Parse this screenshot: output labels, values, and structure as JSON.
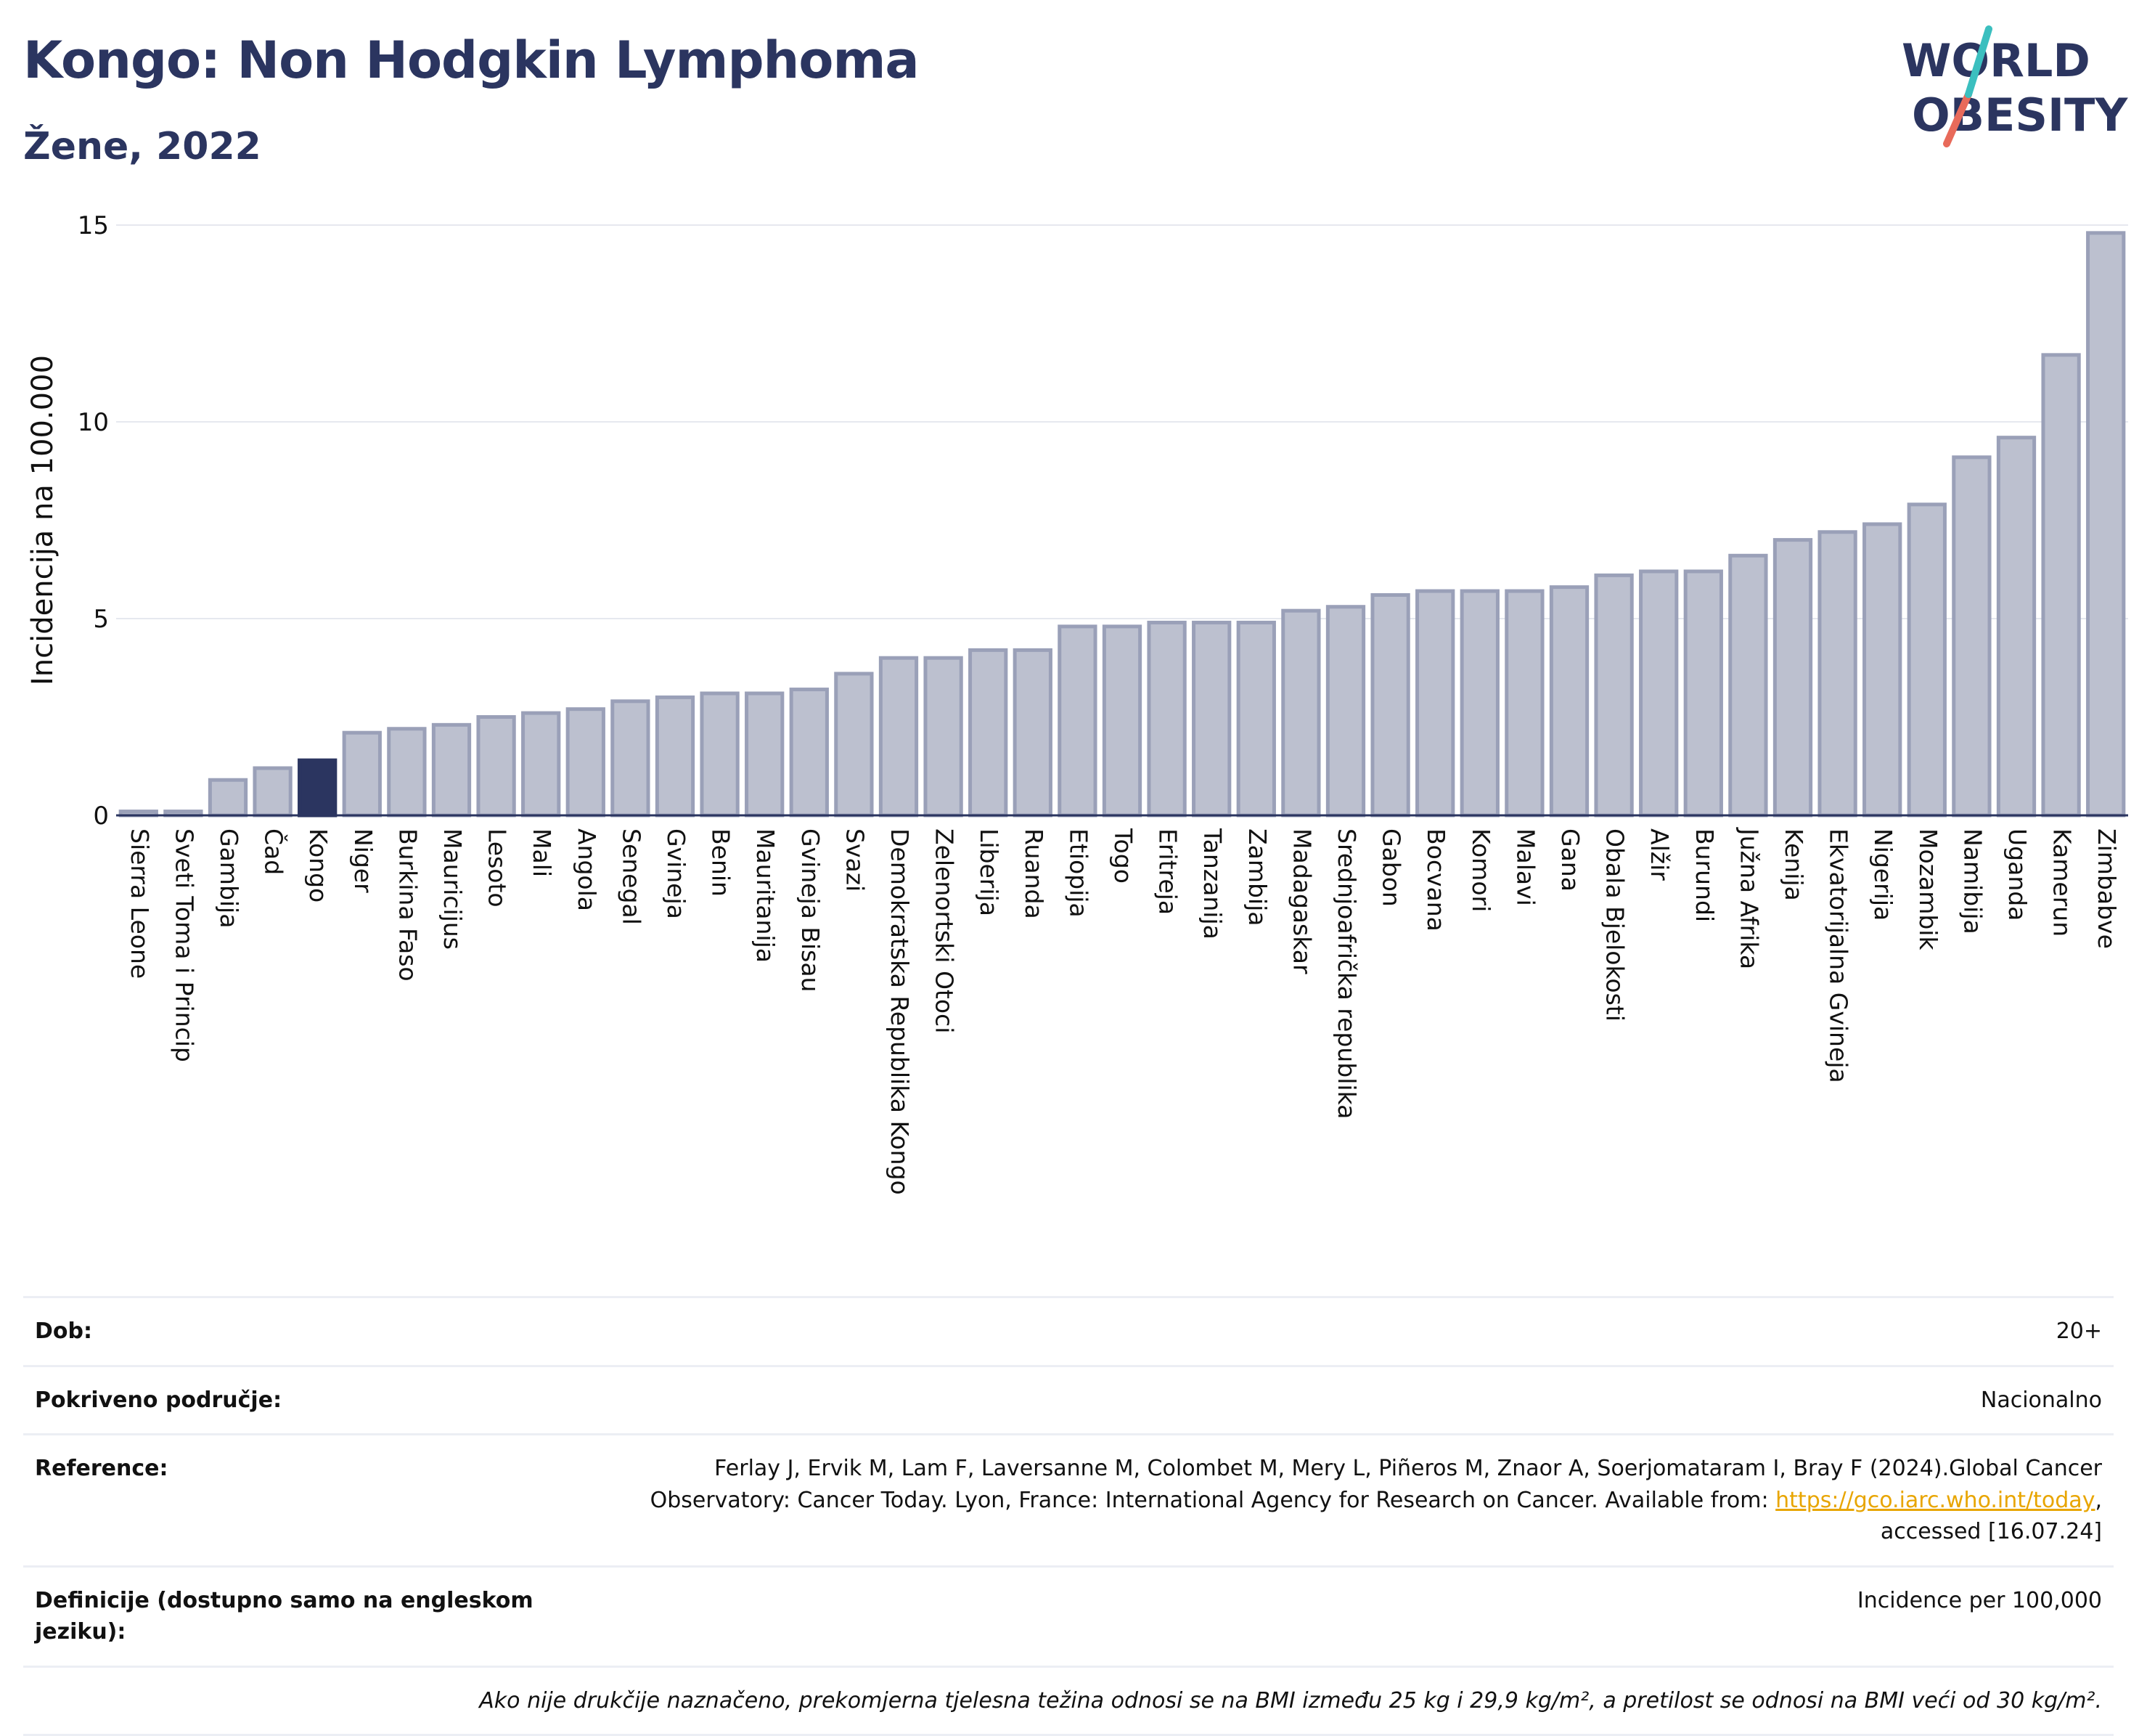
{
  "header": {
    "title": "Kongo: Non Hodgkin Lymphoma",
    "subtitle": "Žene, 2022"
  },
  "logo": {
    "line1": "WORLD",
    "line2": "OBESITY",
    "accent_colors": [
      "#3bbfbf",
      "#e86a5a"
    ]
  },
  "colors": {
    "bar": "#bcc0cf",
    "bar_stroke": "#9aa0b8",
    "highlight": "#2b3560",
    "grid": "#e6e8ef",
    "text": "#2b3560"
  },
  "chart_data": {
    "type": "bar",
    "ylabel": "Incidencija na 100.000",
    "ylim": [
      0,
      15
    ],
    "yticks": [
      0,
      5,
      10,
      15
    ],
    "highlight": "Kongo",
    "categories": [
      "Sierra Leone",
      "Sveti Toma i Princip",
      "Gambija",
      "Čad",
      "Kongo",
      "Niger",
      "Burkina Faso",
      "Mauricijus",
      "Lesoto",
      "Mali",
      "Angola",
      "Senegal",
      "Gvineja",
      "Benin",
      "Mauritanija",
      "Gvineja Bisau",
      "Svazi",
      "Demokratska Republika Kongo",
      "Zelenortski Otoci",
      "Liberija",
      "Ruanda",
      "Etiopija",
      "Togo",
      "Eritreja",
      "Tanzanija",
      "Zambija",
      "Madagaskar",
      "Srednjoafrička republika",
      "Gabon",
      "Bocvana",
      "Komori",
      "Malavi",
      "Gana",
      "Obala Bjelokosti",
      "Alžir",
      "Burundi",
      "Južna Afrika",
      "Kenija",
      "Ekvatorijalna Gvineja",
      "Nigerija",
      "Mozambik",
      "Namibija",
      "Uganda",
      "Kamerun",
      "Zimbabve"
    ],
    "values": [
      0.1,
      0.1,
      0.9,
      1.2,
      1.4,
      2.1,
      2.2,
      2.3,
      2.5,
      2.6,
      2.7,
      2.9,
      3.0,
      3.1,
      3.1,
      3.2,
      3.6,
      4.0,
      4.0,
      4.2,
      4.2,
      4.8,
      4.8,
      4.9,
      4.9,
      4.9,
      5.2,
      5.3,
      5.6,
      5.7,
      5.7,
      5.7,
      5.8,
      6.1,
      6.2,
      6.2,
      6.6,
      7.0,
      7.2,
      7.4,
      7.9,
      9.1,
      9.6,
      11.7,
      14.8
    ]
  },
  "info": {
    "age_label": "Dob:",
    "age_value": "20+",
    "coverage_label": "Pokriveno područje:",
    "coverage_value": "Nacionalno",
    "reference_label": "Reference:",
    "reference_text": "Ferlay J, Ervik M, Lam F, Laversanne M, Colombet M, Mery L, Piñeros M, Znaor A, Soerjomataram I, Bray F (2024).Global Cancer Observatory: Cancer Today. Lyon, France: International Agency for Research on Cancer. Available from: ",
    "reference_link": "https://gco.iarc.who.int/today",
    "reference_tail": ", accessed [16.07.24]",
    "definitions_label": "Definicije (dostupno samo na engleskom jeziku):",
    "definitions_value": "Incidence per 100,000",
    "footnote": "Ako nije drukčije naznačeno, prekomjerna tjelesna težina odnosi se na BMI između 25 kg i 29,9 kg/m², a pretilost se odnosi na BMI veći od 30 kg/m²."
  }
}
